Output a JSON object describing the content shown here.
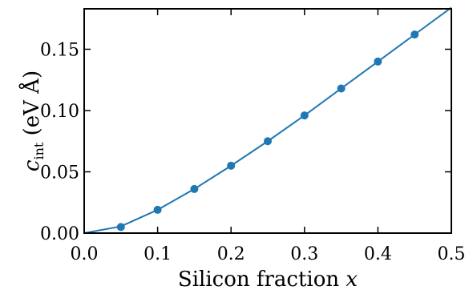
{
  "chart_data": {
    "type": "line",
    "xlabel": "Silicon fraction x",
    "ylabel": "c_int (eV Å)",
    "ylabel_parts": {
      "symbol": "c",
      "subscript": "int",
      "units": "(eV Å)"
    },
    "xlim": [
      0.0,
      0.5
    ],
    "ylim": [
      0.0,
      0.183
    ],
    "x_ticks": [
      "0.0",
      "0.1",
      "0.2",
      "0.3",
      "0.4",
      "0.5"
    ],
    "y_ticks": [
      "0.00",
      "0.05",
      "0.10",
      "0.15"
    ],
    "x_tick_values": [
      0.0,
      0.1,
      0.2,
      0.3,
      0.4,
      0.5
    ],
    "y_tick_values": [
      0.0,
      0.05,
      0.1,
      0.15
    ],
    "grid": false,
    "colors": {
      "series": "#1f77b4",
      "axes": "#000000"
    },
    "series": [
      {
        "marker": "circle",
        "points": {
          "x": [
            0.05,
            0.1,
            0.15,
            0.2,
            0.25,
            0.3,
            0.35,
            0.4,
            0.45
          ],
          "y": [
            0.005,
            0.019,
            0.036,
            0.055,
            0.075,
            0.096,
            0.118,
            0.14,
            0.162
          ]
        },
        "curve": {
          "x": [
            0.0,
            0.05,
            0.1,
            0.15,
            0.2,
            0.25,
            0.3,
            0.35,
            0.4,
            0.45,
            0.5
          ],
          "y": [
            0.0,
            0.0055,
            0.019,
            0.036,
            0.055,
            0.075,
            0.096,
            0.118,
            0.14,
            0.162,
            0.184
          ]
        }
      }
    ]
  }
}
